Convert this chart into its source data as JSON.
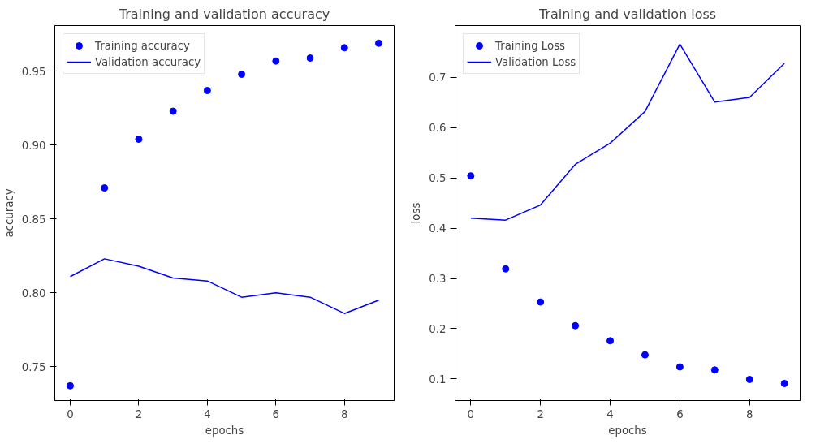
{
  "chart_data": [
    {
      "type": "line",
      "title": "Training and validation accuracy",
      "xlabel": "epochs",
      "ylabel": "accuracy",
      "x": [
        0,
        1,
        2,
        3,
        4,
        5,
        6,
        7,
        8,
        9
      ],
      "xlim": [
        -0.45,
        9.45
      ],
      "xticks": [
        0,
        2,
        4,
        6,
        8
      ],
      "ylim": [
        0.727,
        0.981
      ],
      "yticks": [
        {
          "value": 0.75,
          "label": "0.75"
        },
        {
          "value": 0.8,
          "label": "0.80"
        },
        {
          "value": 0.85,
          "label": "0.85"
        },
        {
          "value": 0.9,
          "label": "0.90"
        },
        {
          "value": 0.95,
          "label": "0.95"
        }
      ],
      "grid": false,
      "legend": "top left",
      "series": [
        {
          "name": "Training accuracy",
          "type": "scatter",
          "marker": "circle",
          "color": "#0000ff",
          "values": [
            0.737,
            0.871,
            0.904,
            0.923,
            0.937,
            0.948,
            0.957,
            0.959,
            0.966,
            0.969
          ]
        },
        {
          "name": "Validation accuracy",
          "type": "line",
          "line_style": "solid",
          "color": "#0000ff",
          "values": [
            0.811,
            0.823,
            0.818,
            0.81,
            0.808,
            0.797,
            0.8,
            0.797,
            0.786,
            0.795
          ]
        }
      ]
    },
    {
      "type": "line",
      "title": "Training and validation loss",
      "xlabel": "epochs",
      "ylabel": "loss",
      "x": [
        0,
        1,
        2,
        3,
        4,
        5,
        6,
        7,
        8,
        9
      ],
      "xlim": [
        -0.45,
        9.45
      ],
      "xticks": [
        0,
        2,
        4,
        6,
        8
      ],
      "ylim": [
        0.057,
        0.803
      ],
      "yticks": [
        0.1,
        0.2,
        0.3,
        0.4,
        0.5,
        0.6,
        0.7
      ],
      "grid": false,
      "legend": "top left",
      "series": [
        {
          "name": "Training Loss",
          "type": "scatter",
          "marker": "circle",
          "color": "#0000ff",
          "values": [
            0.504,
            0.319,
            0.253,
            0.206,
            0.176,
            0.148,
            0.124,
            0.118,
            0.099,
            0.091
          ]
        },
        {
          "name": "Validation Loss",
          "type": "line",
          "line_style": "solid",
          "color": "#0000ff",
          "values": [
            0.42,
            0.416,
            0.446,
            0.527,
            0.569,
            0.632,
            0.766,
            0.651,
            0.66,
            0.728
          ]
        }
      ]
    }
  ]
}
